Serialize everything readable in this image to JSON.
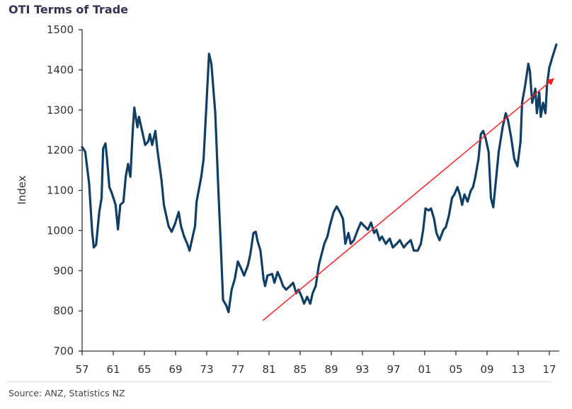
{
  "chart_data": {
    "type": "line",
    "title": "OTI Terms of Trade",
    "xlabel": "",
    "ylabel": "Index",
    "ylim": [
      700,
      1500
    ],
    "xlim": [
      1957,
      2018
    ],
    "grid": false,
    "legend": "none",
    "yticks": [
      700,
      800,
      900,
      1000,
      1100,
      1200,
      1300,
      1400,
      1500
    ],
    "yticklabels": [
      "700",
      "800",
      "900",
      "1000",
      "1100",
      "1200",
      "1300",
      "1400",
      "1500"
    ],
    "xticks": [
      1957,
      1961,
      1965,
      1969,
      1973,
      1977,
      1981,
      1985,
      1989,
      1993,
      1997,
      2001,
      2005,
      2009,
      2013,
      2017
    ],
    "xticklabels": [
      "57",
      "61",
      "65",
      "69",
      "73",
      "77",
      "81",
      "85",
      "89",
      "93",
      "97",
      "01",
      "05",
      "09",
      "13",
      "17"
    ],
    "series": [
      {
        "name": "OTI Terms of Trade",
        "color": "#0f3f66",
        "x": [
          1957.0,
          1957.4,
          1957.9,
          1958.3,
          1958.5,
          1958.8,
          1959.2,
          1959.5,
          1959.7,
          1960.0,
          1960.2,
          1960.5,
          1960.8,
          1961.3,
          1961.6,
          1961.9,
          1962.3,
          1962.6,
          1962.9,
          1963.2,
          1963.5,
          1963.7,
          1964.1,
          1964.3,
          1964.6,
          1965.1,
          1965.5,
          1965.7,
          1966.0,
          1966.4,
          1966.7,
          1967.2,
          1967.5,
          1968.1,
          1968.5,
          1968.9,
          1969.4,
          1969.7,
          1970.1,
          1970.5,
          1970.8,
          1971.2,
          1971.5,
          1971.7,
          1972.3,
          1972.6,
          1973.0,
          1973.3,
          1973.6,
          1974.1,
          1974.5,
          1974.8,
          1975.1,
          1975.5,
          1975.8,
          1976.2,
          1976.6,
          1977.0,
          1977.5,
          1977.8,
          1978.3,
          1978.6,
          1979.0,
          1979.3,
          1979.5,
          1979.9,
          1980.3,
          1980.5,
          1980.8,
          1981.4,
          1981.7,
          1982.1,
          1982.5,
          1982.8,
          1983.2,
          1983.7,
          1984.1,
          1984.5,
          1984.8,
          1985.2,
          1985.5,
          1985.9,
          1986.3,
          1986.6,
          1987.0,
          1987.4,
          1987.7,
          1988.1,
          1988.5,
          1988.8,
          1989.3,
          1989.7,
          1990.1,
          1990.5,
          1990.8,
          1991.2,
          1991.5,
          1991.9,
          1992.4,
          1992.8,
          1993.4,
          1993.7,
          1994.1,
          1994.5,
          1994.8,
          1995.2,
          1995.5,
          1996.0,
          1996.5,
          1996.9,
          1997.4,
          1997.8,
          1998.3,
          1998.7,
          1999.2,
          1999.6,
          2000.1,
          2000.5,
          2000.8,
          2001.1,
          2001.5,
          2001.8,
          2002.2,
          2002.5,
          2002.9,
          2003.4,
          2003.7,
          2004.1,
          2004.5,
          2004.8,
          2005.2,
          2005.5,
          2005.8,
          2006.1,
          2006.5,
          2006.9,
          2007.2,
          2007.5,
          2007.9,
          2008.2,
          2008.5,
          2008.8,
          2009.2,
          2009.5,
          2009.8,
          2010.1,
          2010.5,
          2011.0,
          2011.4,
          2011.7,
          2012.1,
          2012.5,
          2012.9,
          2013.3,
          2013.5,
          2013.9,
          2014.3,
          2014.5,
          2014.8,
          2015.2,
          2015.4,
          2015.7,
          2015.9,
          2016.2,
          2016.5,
          2016.7,
          2017.0,
          2017.4,
          2017.9
        ],
        "values": [
          1208,
          1196,
          1117,
          994,
          958,
          965,
          1046,
          1081,
          1204,
          1217,
          1178,
          1108,
          1094,
          1064,
          1003,
          1064,
          1071,
          1134,
          1166,
          1134,
          1248,
          1306,
          1257,
          1283,
          1257,
          1213,
          1222,
          1240,
          1213,
          1248,
          1196,
          1125,
          1064,
          1011,
          997,
          1015,
          1046,
          1011,
          985,
          967,
          950,
          985,
          1011,
          1072,
          1134,
          1178,
          1327,
          1440,
          1415,
          1292,
          1099,
          967,
          827,
          814,
          797,
          853,
          879,
          923,
          902,
          888,
          914,
          941,
          994,
          997,
          976,
          950,
          879,
          862,
          888,
          892,
          870,
          897,
          879,
          862,
          853,
          862,
          870,
          844,
          853,
          835,
          818,
          835,
          818,
          844,
          862,
          914,
          937,
          967,
          985,
          1011,
          1046,
          1060,
          1046,
          1029,
          967,
          994,
          967,
          976,
          1002,
          1020,
          1008,
          1002,
          1020,
          994,
          1002,
          976,
          985,
          967,
          980,
          958,
          967,
          976,
          958,
          967,
          976,
          950,
          950,
          967,
          1002,
          1055,
          1050,
          1055,
          1029,
          994,
          976,
          1002,
          1008,
          1037,
          1081,
          1090,
          1108,
          1090,
          1064,
          1090,
          1072,
          1099,
          1108,
          1134,
          1178,
          1240,
          1248,
          1231,
          1196,
          1081,
          1058,
          1117,
          1196,
          1257,
          1292,
          1274,
          1231,
          1178,
          1160,
          1222,
          1318,
          1362,
          1415,
          1397,
          1318,
          1353,
          1292,
          1344,
          1283,
          1318,
          1292,
          1362,
          1406,
          1432,
          1463
        ]
      }
    ],
    "annotations": [
      {
        "type": "arrow",
        "color": "#ff2a2a",
        "from": {
          "x": 1980.2,
          "y": 776
        },
        "to": {
          "x": 2017.5,
          "y": 1377
        }
      }
    ]
  },
  "source": "Source: ANZ, Statistics NZ"
}
